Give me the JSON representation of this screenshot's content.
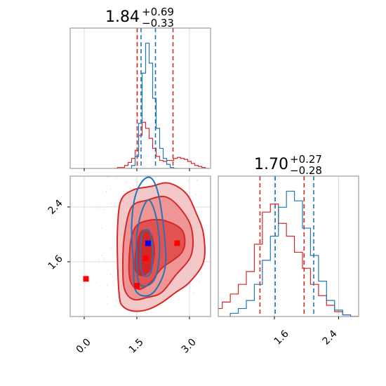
{
  "colors": {
    "red": "#d62728",
    "blue": "#1f77b4",
    "grid": "#d9d9d9",
    "marker_red": "#ff0000",
    "marker_blue": "#0000ff"
  },
  "chart_data": [
    {
      "type": "histogram",
      "panel": "top-left",
      "title": {
        "main": "1.84",
        "sup": "+0.69",
        "sub": "−0.33"
      },
      "xlim": [
        -0.4,
        3.6
      ],
      "grid": true,
      "series": [
        {
          "color": "#d62728",
          "quantiles": [
            1.51,
            2.53
          ],
          "bins": [
            [
              0.9,
              0
            ],
            [
              1.0,
              1
            ],
            [
              1.1,
              1
            ],
            [
              1.2,
              3
            ],
            [
              1.3,
              6
            ],
            [
              1.4,
              10
            ],
            [
              1.5,
              18
            ],
            [
              1.6,
              33
            ],
            [
              1.7,
              46
            ],
            [
              1.8,
              40
            ],
            [
              1.9,
              30
            ],
            [
              2.0,
              20
            ],
            [
              2.1,
              12
            ],
            [
              2.2,
              8
            ],
            [
              2.3,
              7
            ],
            [
              2.4,
              8
            ],
            [
              2.5,
              8
            ],
            [
              2.6,
              10
            ],
            [
              2.7,
              11
            ],
            [
              2.8,
              10
            ],
            [
              2.9,
              9
            ],
            [
              3.0,
              7
            ],
            [
              3.1,
              5
            ],
            [
              3.2,
              3
            ],
            [
              3.3,
              2
            ],
            [
              3.4,
              1
            ],
            [
              3.5,
              0
            ]
          ]
        },
        {
          "color": "#1f77b4",
          "quantiles": [
            1.62,
            2.03
          ],
          "bins": [
            [
              1.3,
              0
            ],
            [
              1.4,
              3
            ],
            [
              1.5,
              12
            ],
            [
              1.6,
              45
            ],
            [
              1.7,
              95
            ],
            [
              1.8,
              125
            ],
            [
              1.9,
              105
            ],
            [
              2.0,
              70
            ],
            [
              2.1,
              40
            ],
            [
              2.2,
              20
            ],
            [
              2.3,
              10
            ],
            [
              2.4,
              4
            ],
            [
              2.5,
              1
            ],
            [
              2.6,
              0
            ]
          ]
        }
      ]
    },
    {
      "type": "histogram",
      "panel": "bottom-right",
      "title": {
        "main": "1.70",
        "sup": "+0.27",
        "sub": "−0.28"
      },
      "xlim": [
        0.9,
        2.65
      ],
      "xticks": [
        "1.6",
        "2.4"
      ],
      "grid": true,
      "series": [
        {
          "color": "#d62728",
          "quantiles": [
            1.42,
            1.97
          ],
          "bins": [
            [
              0.9,
              5
            ],
            [
              1.0,
              9
            ],
            [
              1.1,
              14
            ],
            [
              1.2,
              20
            ],
            [
              1.3,
              28
            ],
            [
              1.4,
              45
            ],
            [
              1.5,
              65
            ],
            [
              1.6,
              70
            ],
            [
              1.7,
              58
            ],
            [
              1.8,
              50
            ],
            [
              1.9,
              40
            ],
            [
              2.0,
              30
            ],
            [
              2.1,
              20
            ],
            [
              2.2,
              13
            ],
            [
              2.3,
              7
            ],
            [
              2.4,
              3
            ],
            [
              2.5,
              1
            ],
            [
              2.6,
              0
            ]
          ]
        },
        {
          "color": "#1f77b4",
          "quantiles": [
            1.61,
            2.09
          ],
          "bins": [
            [
              1.1,
              2
            ],
            [
              1.2,
              5
            ],
            [
              1.3,
              10
            ],
            [
              1.4,
              20
            ],
            [
              1.5,
              35
            ],
            [
              1.6,
              50
            ],
            [
              1.7,
              68
            ],
            [
              1.8,
              78
            ],
            [
              1.9,
              72
            ],
            [
              2.0,
              55
            ],
            [
              2.1,
              38
            ],
            [
              2.2,
              22
            ],
            [
              2.3,
              10
            ],
            [
              2.4,
              4
            ],
            [
              2.5,
              1
            ],
            [
              2.6,
              0
            ]
          ]
        }
      ]
    },
    {
      "type": "contour",
      "panel": "bottom-left",
      "xlim": [
        -0.4,
        3.6
      ],
      "ylim": [
        0.8,
        2.85
      ],
      "xticks": [
        "0.0",
        "1.5",
        "3.0"
      ],
      "yticks": [
        "1.6",
        "2.4"
      ],
      "grid": true,
      "series": [
        {
          "color": "#d62728",
          "filled": true,
          "levels": [
            [
              [
                1.0,
                1.1
              ],
              [
                1.1,
                0.95
              ],
              [
                1.4,
                0.88
              ],
              [
                1.8,
                0.9
              ],
              [
                2.2,
                1.0
              ],
              [
                2.6,
                1.15
              ],
              [
                3.0,
                1.3
              ],
              [
                3.4,
                1.6
              ],
              [
                3.4,
                2.0
              ],
              [
                3.2,
                2.3
              ],
              [
                2.9,
                2.6
              ],
              [
                2.4,
                2.75
              ],
              [
                1.9,
                2.7
              ],
              [
                1.4,
                2.65
              ],
              [
                1.05,
                2.5
              ],
              [
                0.95,
                2.1
              ],
              [
                0.95,
                1.6
              ]
            ],
            [
              [
                1.15,
                1.2
              ],
              [
                1.4,
                1.05
              ],
              [
                1.8,
                1.08
              ],
              [
                2.2,
                1.15
              ],
              [
                2.6,
                1.4
              ],
              [
                3.05,
                1.7
              ],
              [
                3.05,
                2.1
              ],
              [
                2.7,
                2.4
              ],
              [
                2.3,
                2.55
              ],
              [
                1.8,
                2.5
              ],
              [
                1.35,
                2.4
              ],
              [
                1.15,
                2.0
              ],
              [
                1.1,
                1.55
              ]
            ],
            [
              [
                1.3,
                1.35
              ],
              [
                1.55,
                1.2
              ],
              [
                1.9,
                1.3
              ],
              [
                2.2,
                1.5
              ],
              [
                2.8,
                1.75
              ],
              [
                2.8,
                2.05
              ],
              [
                2.3,
                2.2
              ],
              [
                1.8,
                2.2
              ],
              [
                1.45,
                2.1
              ],
              [
                1.3,
                1.8
              ]
            ],
            [
              [
                1.45,
                1.5
              ],
              [
                1.65,
                1.4
              ],
              [
                1.9,
                1.5
              ],
              [
                2.0,
                1.75
              ],
              [
                1.9,
                2.0
              ],
              [
                1.65,
                2.05
              ],
              [
                1.5,
                1.85
              ]
            ]
          ]
        },
        {
          "color": "#1f77b4",
          "filled": false,
          "levels": [
            [
              [
                1.4,
                1.6
              ],
              [
                1.45,
                1.2
              ],
              [
                1.75,
                1.1
              ],
              [
                2.05,
                1.2
              ],
              [
                2.3,
                1.5
              ],
              [
                2.3,
                1.9
              ],
              [
                2.15,
                2.5
              ],
              [
                1.95,
                2.8
              ],
              [
                1.7,
                2.8
              ],
              [
                1.45,
                2.55
              ],
              [
                1.35,
                2.1
              ]
            ],
            [
              [
                1.5,
                1.65
              ],
              [
                1.55,
                1.3
              ],
              [
                1.8,
                1.25
              ],
              [
                2.05,
                1.4
              ],
              [
                2.15,
                1.8
              ],
              [
                2.05,
                2.25
              ],
              [
                1.85,
                2.5
              ],
              [
                1.65,
                2.35
              ],
              [
                1.5,
                2.0
              ]
            ],
            [
              [
                1.6,
                1.6
              ],
              [
                1.7,
                1.4
              ],
              [
                1.9,
                1.45
              ],
              [
                1.95,
                1.8
              ],
              [
                1.85,
                2.05
              ],
              [
                1.65,
                2.0
              ]
            ]
          ]
        }
      ],
      "markers": [
        {
          "x": 0.05,
          "y": 1.35,
          "color": "#ff0000"
        },
        {
          "x": 1.5,
          "y": 1.25,
          "color": "#ff0000"
        },
        {
          "x": 1.75,
          "y": 1.65,
          "color": "#ff0000"
        },
        {
          "x": 2.65,
          "y": 1.87,
          "color": "#ff0000"
        },
        {
          "x": 1.82,
          "y": 1.87,
          "color": "#0000ff"
        }
      ]
    }
  ]
}
